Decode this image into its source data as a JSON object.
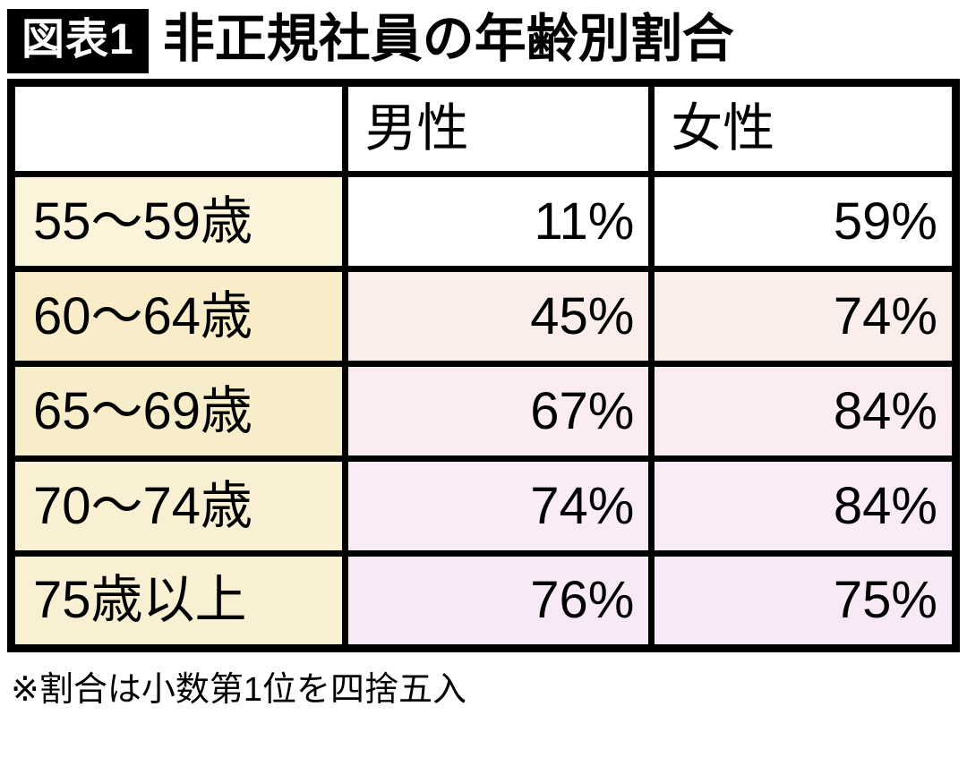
{
  "title": {
    "badge": "図表1",
    "text": "非正規社員の年齢別割合"
  },
  "table": {
    "headers": {
      "age": "",
      "male": "男性",
      "female": "女性"
    },
    "rows": [
      {
        "age": "55〜59歳",
        "male": "11%",
        "female": "59%",
        "age_bg": "#FBF4DA",
        "value_bg": "#FFFFFF"
      },
      {
        "age": "60〜64歳",
        "male": "45%",
        "female": "74%",
        "age_bg": "#F8ECC9",
        "value_bg": "#FBEDE9"
      },
      {
        "age": "65〜69歳",
        "male": "67%",
        "female": "84%",
        "age_bg": "#F8EDCB",
        "value_bg": "#FBECF0"
      },
      {
        "age": "70〜74歳",
        "male": "74%",
        "female": "84%",
        "age_bg": "#F9EFD2",
        "value_bg": "#FAECF6"
      },
      {
        "age": "75歳以上",
        "male": "76%",
        "female": "75%",
        "age_bg": "#F9EFD3",
        "value_bg": "#F8E9F6"
      }
    ]
  },
  "note": "※割合は小数第1位を四捨五入",
  "colors": {
    "border": "#000000",
    "badge_bg": "#000000",
    "badge_text": "#FFFFFF",
    "page_bg": "#FFFFFF"
  },
  "chart_data": {
    "type": "table",
    "title": "図表1 非正規社員の年齢別割合",
    "columns": [
      "",
      "男性",
      "女性"
    ],
    "categories": [
      "55〜59歳",
      "60〜64歳",
      "65〜69歳",
      "70〜74歳",
      "75歳以上"
    ],
    "series": [
      {
        "name": "男性",
        "values": [
          11,
          45,
          67,
          74,
          76
        ]
      },
      {
        "name": "女性",
        "values": [
          59,
          74,
          84,
          84,
          75
        ]
      }
    ],
    "unit": "%",
    "note": "※割合は小数第1位を四捨五入"
  }
}
